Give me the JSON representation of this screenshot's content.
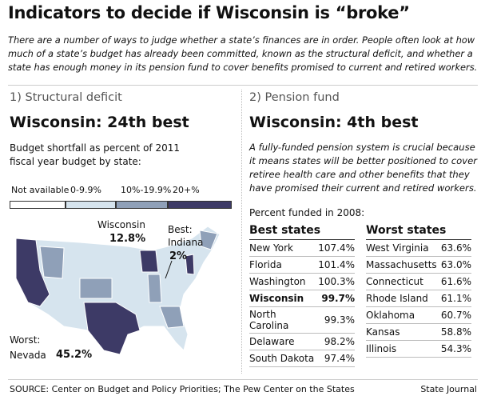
{
  "header": {
    "title": "Indicators to decide if Wisconsin is “broke”",
    "intro": "There are a number of ways to judge whether a state’s finances are in order. People often look at how much of a state’s budget has already been committed, known as the structural deficit, and whether a state has enough money in its pension fund to cover benefits promised to current and retired workers."
  },
  "structural": {
    "heading": "1) Structural deficit",
    "headline": "Wisconsin: 24th best",
    "caption": "Budget shortfall as percent of 2011 fiscal year budget by state:",
    "legend": [
      "Not available",
      "0-9.9%",
      "10%-19.9%",
      "20+%"
    ],
    "map_labels": {
      "wisconsin": "Wisconsin",
      "wisconsin_value": "12.8%",
      "best": "Best:",
      "best_state": "Indiana",
      "best_value": "2%",
      "worst": "Worst:",
      "worst_state": "Nevada",
      "worst_value": "45.2%"
    }
  },
  "pension": {
    "heading": "2) Pension fund",
    "headline": "Wisconsin: 4th best",
    "paragraph": "A fully-funded pension system is crucial because it means states will be better positioned to cover retiree health care and other benefits that they have promised their current and retired workers.",
    "caption": "Percent funded in 2008:",
    "best": {
      "title": "Best states",
      "rows": [
        [
          "New York",
          "107.4%"
        ],
        [
          "Florida",
          "101.4%"
        ],
        [
          "Washington",
          "100.3%"
        ],
        [
          "Wisconsin",
          "99.7%"
        ],
        [
          "North Carolina",
          "99.3%"
        ],
        [
          "Delaware",
          "98.2%"
        ],
        [
          "South Dakota",
          "97.4%"
        ]
      ]
    },
    "worst": {
      "title": "Worst states",
      "rows": [
        [
          "West Virginia",
          "63.6%"
        ],
        [
          "Massachusetts",
          "63.0%"
        ],
        [
          "Connecticut",
          "61.6%"
        ],
        [
          "Rhode Island",
          "61.1%"
        ],
        [
          "Oklahoma",
          "60.7%"
        ],
        [
          "Kansas",
          "58.8%"
        ],
        [
          "Illinois",
          "54.3%"
        ]
      ]
    }
  },
  "footer": {
    "source": "SOURCE: Center on Budget and Policy Priorities; The Pew Center on the States",
    "credit": "State Journal"
  }
}
